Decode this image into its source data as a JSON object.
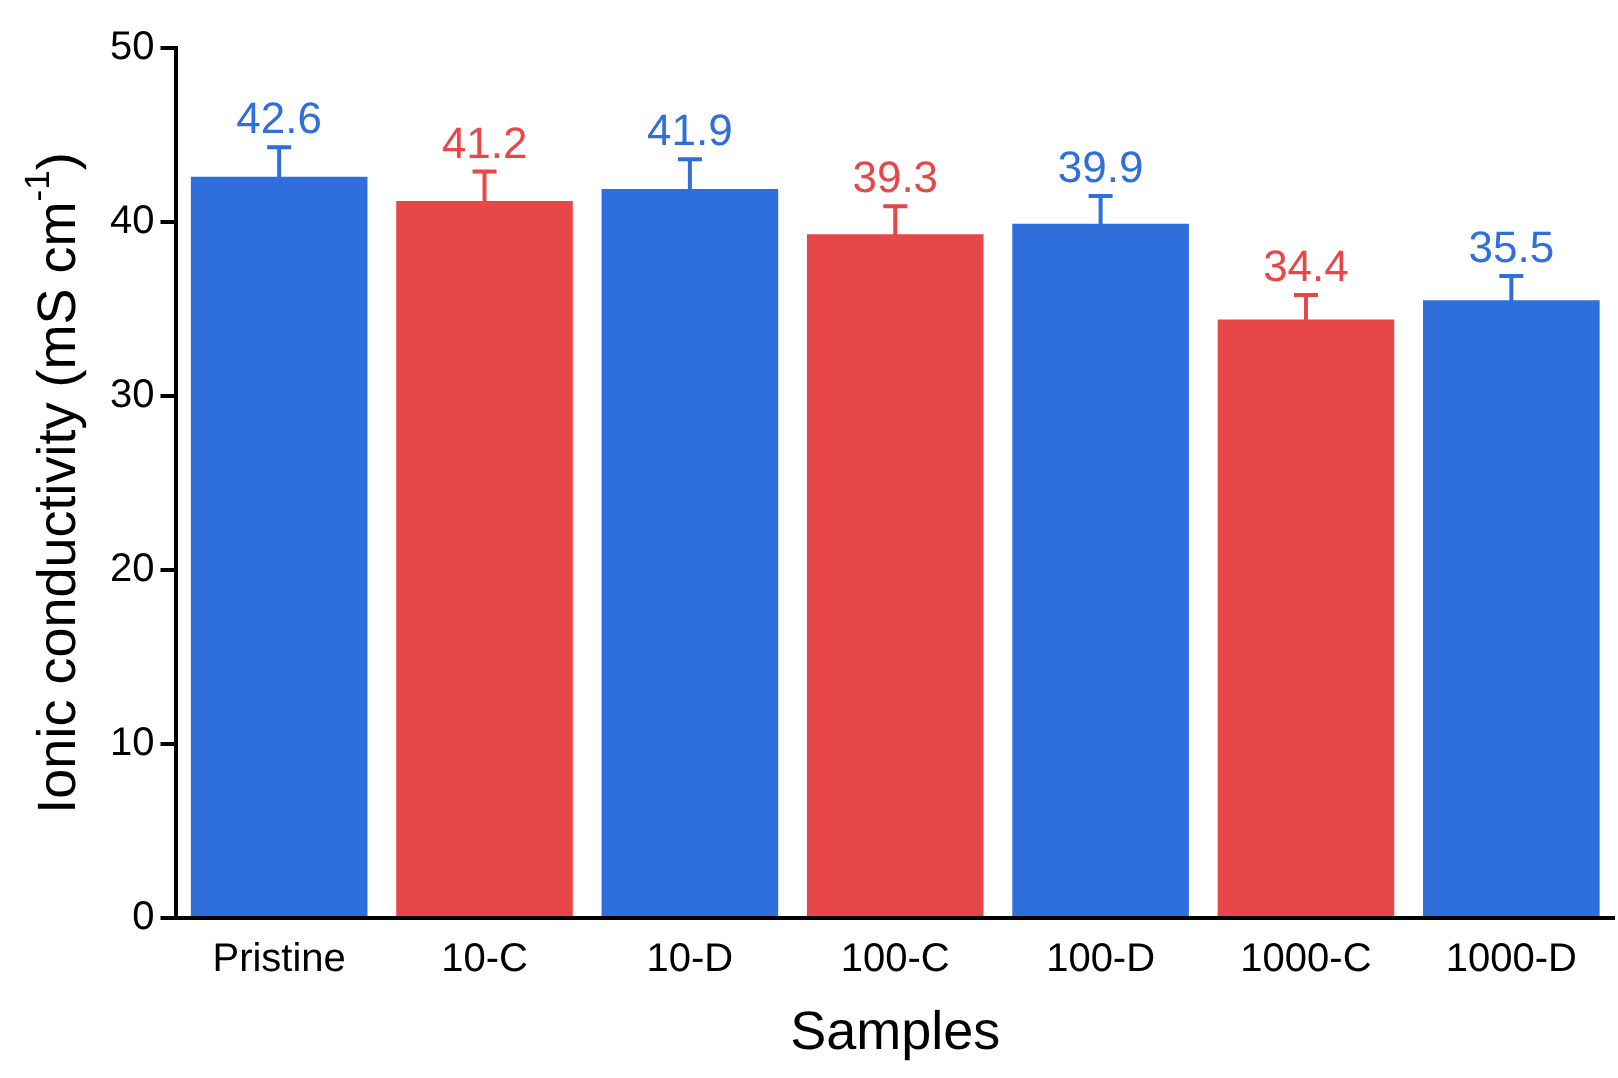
{
  "chart_data": {
    "type": "bar",
    "xlabel": "Samples",
    "ylabel": "Ionic conductivity (mS cm$^{-1}$)",
    "categories": [
      "Pristine",
      "10-C",
      "10-D",
      "100-C",
      "100-D",
      "1000-C",
      "1000-D"
    ],
    "values": [
      42.6,
      41.2,
      41.9,
      39.3,
      39.9,
      34.4,
      35.5
    ],
    "errors": [
      1.7,
      1.7,
      1.7,
      1.6,
      1.6,
      1.4,
      1.4
    ],
    "colors": [
      "#2f6fdc",
      "#e8474a",
      "#2f6fdc",
      "#e8474a",
      "#2f6fdc",
      "#e8474a",
      "#2f6fdc"
    ],
    "ylim": [
      0,
      50
    ],
    "yticks": [
      0,
      10,
      20,
      30,
      40,
      50
    ],
    "data_labels": true,
    "grid": false,
    "legend": false
  }
}
